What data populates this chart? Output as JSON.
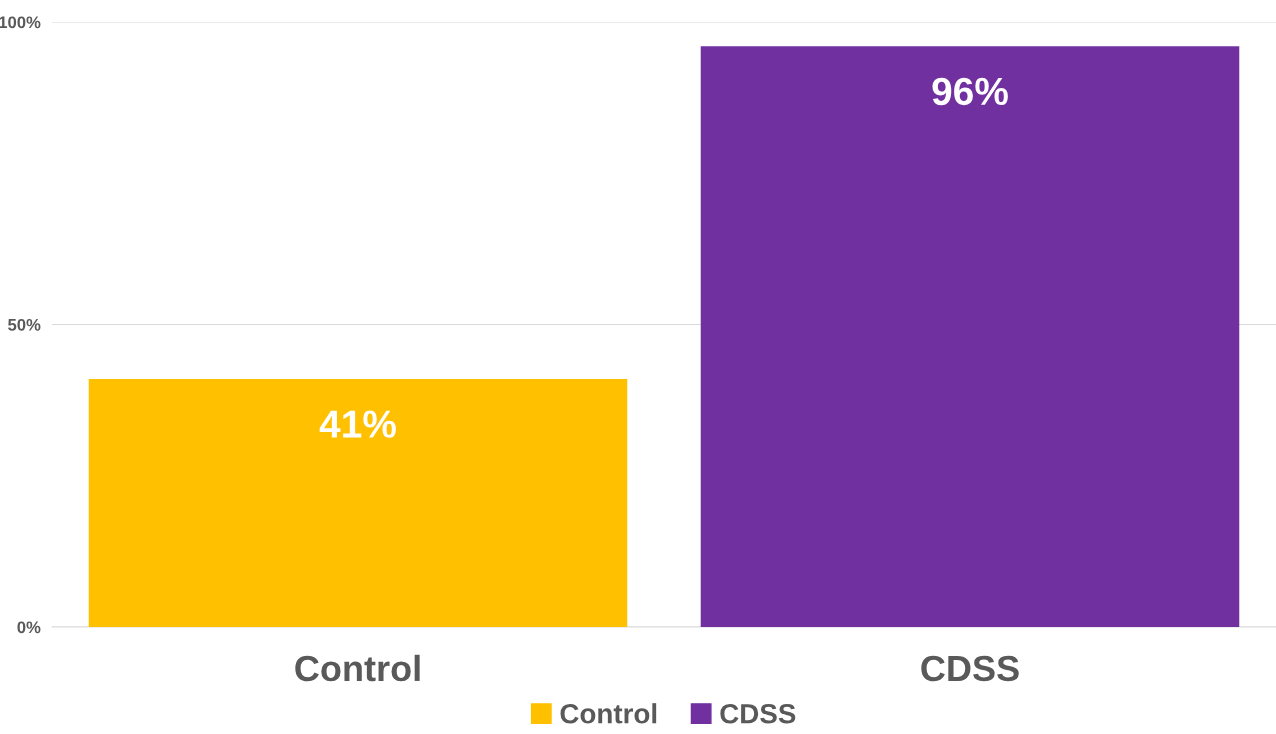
{
  "chart_data": {
    "type": "bar",
    "categories": [
      "Control",
      "CDSS"
    ],
    "series": [
      {
        "name": "Control",
        "color": "#ffc000",
        "values": [
          41,
          null
        ]
      },
      {
        "name": "CDSS",
        "color": "#7030a0",
        "values": [
          null,
          96
        ]
      }
    ],
    "ylim": [
      0,
      100
    ],
    "yticks": [
      {
        "value": 0,
        "label": "0%"
      },
      {
        "value": 50,
        "label": "50%"
      },
      {
        "value": 100,
        "label": "100%"
      }
    ],
    "value_labels": [
      "41%",
      "96%"
    ],
    "grid": "y",
    "legend": "bottom"
  }
}
